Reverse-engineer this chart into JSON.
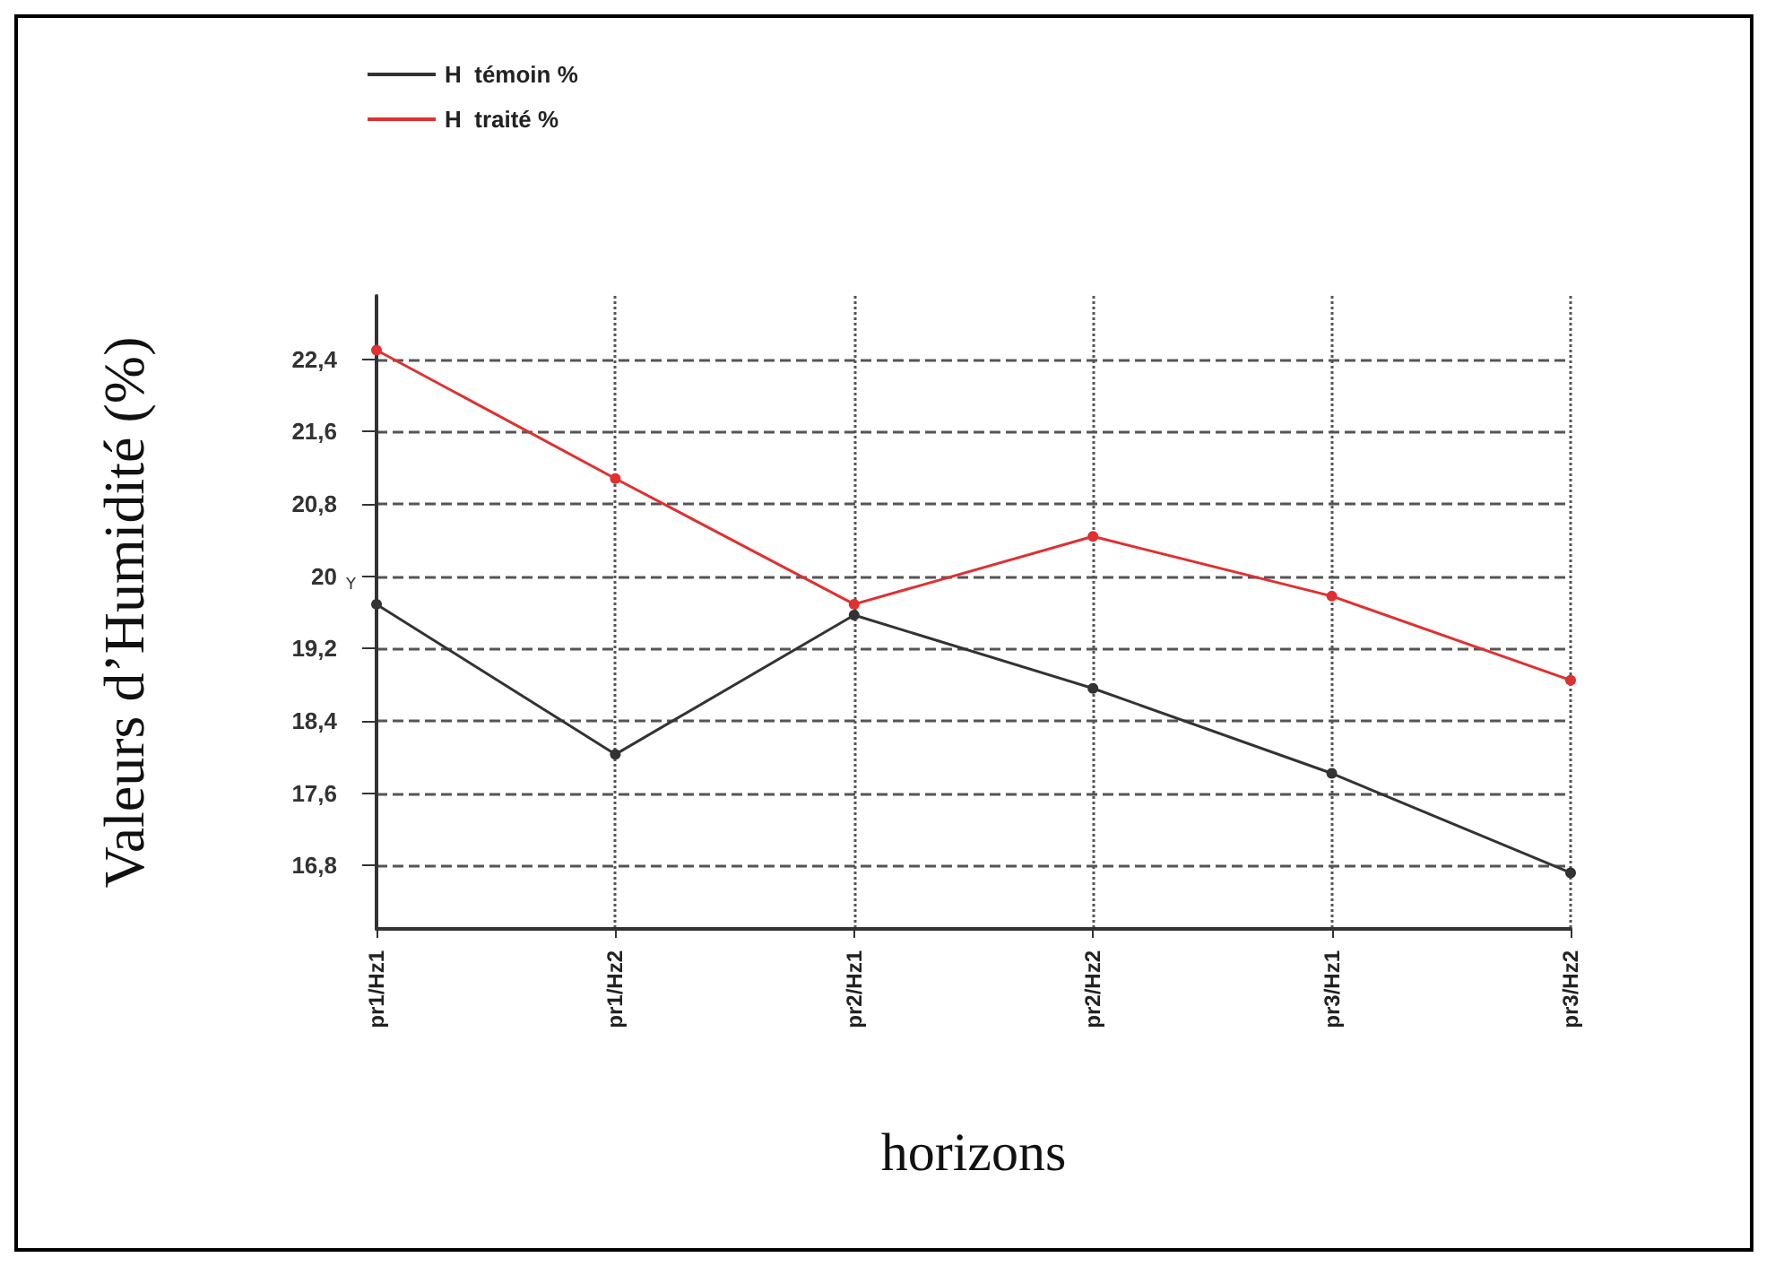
{
  "chart_data": {
    "type": "line",
    "xlabel": "horizons",
    "ylabel": "Valeurs d’Humidité (%)",
    "categories": [
      "pr1/Hz1",
      "pr1/Hz2",
      "pr2/Hz1",
      "pr2/Hz2",
      "pr3/Hz1",
      "pr3/Hz2"
    ],
    "series": [
      {
        "name": "H  témoin %",
        "color": "#333333",
        "values": [
          19.69,
          18.03,
          19.57,
          18.76,
          17.82,
          16.72
        ]
      },
      {
        "name": "H  traité %",
        "color": "#e03030",
        "values": [
          22.5,
          21.08,
          19.69,
          20.44,
          19.78,
          18.85
        ]
      }
    ],
    "ylim": [
      16.1,
      23.1
    ],
    "yticks": [
      {
        "value": 16.8,
        "label": "16,8"
      },
      {
        "value": 17.6,
        "label": "17,6"
      },
      {
        "value": 18.4,
        "label": "18,4"
      },
      {
        "value": 19.2,
        "label": "19,2"
      },
      {
        "value": 20,
        "label": "20"
      },
      {
        "value": 20.8,
        "label": "20,8"
      },
      {
        "value": 21.6,
        "label": "21,6"
      },
      {
        "value": 22.4,
        "label": "22,4"
      }
    ],
    "annotations": [
      "Y"
    ],
    "grid": true,
    "legend": "top left",
    "marker": "circle",
    "line_style": "solid"
  }
}
